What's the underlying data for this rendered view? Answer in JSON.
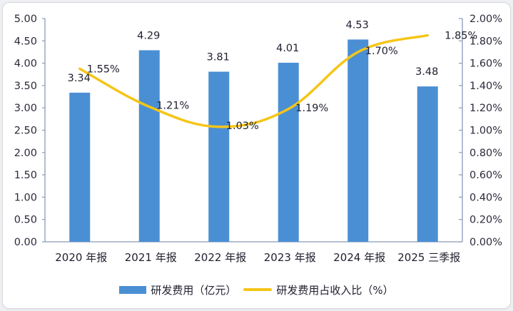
{
  "chart_data": {
    "type": "bar",
    "title": "",
    "xlabel": "",
    "ylabel": "",
    "categories": [
      "2020 年报",
      "2021 年报",
      "2022 年报",
      "2023 年报",
      "2024 年报",
      "2025 三季报"
    ],
    "series": [
      {
        "name": "研发费用（亿元）",
        "type": "bar",
        "axis": "left",
        "color": "#4a8fd4",
        "values": [
          3.34,
          4.29,
          3.81,
          4.01,
          4.53,
          3.48
        ],
        "labels": [
          "3.34",
          "4.29",
          "3.81",
          "4.01",
          "4.53",
          "3.48"
        ]
      },
      {
        "name": "研发费用占收入比（%）",
        "type": "line",
        "axis": "right",
        "color": "#f5c518",
        "values": [
          1.55,
          1.21,
          1.03,
          1.19,
          1.7,
          1.85
        ],
        "labels": [
          "1.55%",
          "1.21%",
          "1.03%",
          "1.19%",
          "1.70%",
          "1.85%"
        ]
      }
    ],
    "left_axis": {
      "ylim": [
        0,
        5
      ],
      "ticks": [
        "0.00",
        "0.50",
        "1.00",
        "1.50",
        "2.00",
        "2.50",
        "3.00",
        "3.50",
        "4.00",
        "4.50",
        "5.00"
      ]
    },
    "right_axis": {
      "ylim": [
        0,
        2
      ],
      "ticks": [
        "0.00%",
        "0.20%",
        "0.40%",
        "0.60%",
        "0.80%",
        "1.00%",
        "1.20%",
        "1.40%",
        "1.60%",
        "1.80%",
        "2.00%"
      ]
    },
    "grid": false,
    "legend_position": "bottom"
  },
  "legend": {
    "bar_label": "研发费用（亿元）",
    "line_label": "研发费用占收入比（%）"
  }
}
